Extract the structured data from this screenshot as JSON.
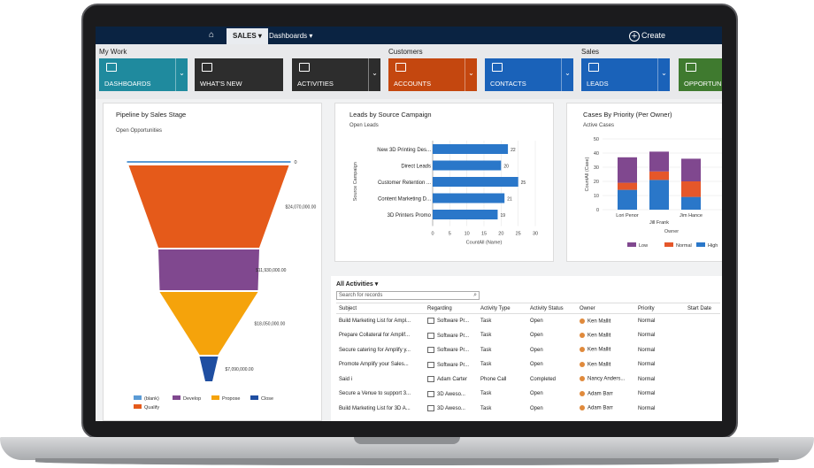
{
  "nav": {
    "sales": "SALES ▾",
    "dashboards": "Dashboards ▾",
    "create": "Create",
    "create_icon": "+"
  },
  "groups": {
    "my_work": "My Work",
    "customers": "Customers",
    "sales": "Sales"
  },
  "tiles": [
    {
      "label": "DASHBOARDS",
      "color": "#1f8a9e"
    },
    {
      "label": "WHAT'S NEW",
      "color": "#2d2d2d"
    },
    {
      "label": "ACTIVITIES",
      "color": "#2d2d2d"
    },
    {
      "label": "ACCOUNTS",
      "color": "#c4470f"
    },
    {
      "label": "CONTACTS",
      "color": "#1a62b9"
    },
    {
      "label": "LEADS",
      "color": "#1a62b9"
    },
    {
      "label": "OPPORTUNITI",
      "color": "#3f7a2f"
    }
  ],
  "pipeline": {
    "title": "Pipeline by Sales Stage",
    "subtitle": "Open Opportunities",
    "stages": [
      {
        "name": "(blank)",
        "value": 0,
        "label": "0",
        "color": "#5b9bd5"
      },
      {
        "name": "Qualify",
        "value": 24070000,
        "label": "$24,070,000.00",
        "color": "#e55a1a"
      },
      {
        "name": "Develop",
        "value": 11930000,
        "label": "$11,930,000.00",
        "color": "#80488f"
      },
      {
        "name": "Propose",
        "value": 18050000,
        "label": "$18,050,000.00",
        "color": "#f5a30b"
      },
      {
        "name": "Close",
        "value": 7090000,
        "label": "$7,090,000.00",
        "color": "#1f4ea1"
      }
    ],
    "legend": [
      "(blank)",
      "Develop",
      "Propose",
      "Close",
      "Qualify"
    ]
  },
  "chart_data": [
    {
      "type": "bar",
      "title": "Leads by Source Campaign",
      "subtitle": "Open Leads",
      "categories": [
        "New 3D Printing Des...",
        "Direct Leads",
        "Customer Retention ...",
        "Content Marketing D...",
        "3D Printers Promo"
      ],
      "values": [
        22,
        20,
        25,
        21,
        19
      ],
      "xlabel": "CountAll (Name)",
      "ylabel": "Source Campaign",
      "xlim": [
        0,
        30
      ],
      "xticks": [
        0,
        5,
        10,
        15,
        20,
        25,
        30
      ],
      "orientation": "horizontal",
      "color": "#2a77c9"
    },
    {
      "type": "bar",
      "stacked": true,
      "title": "Cases By Priority (Per Owner)",
      "subtitle": "Active Cases",
      "categories": [
        "Lori Penor",
        "Jill Frank",
        "Jim Hance"
      ],
      "series": [
        {
          "name": "High",
          "values": [
            14,
            21,
            9
          ],
          "color": "#2a77c9"
        },
        {
          "name": "Normal",
          "values": [
            5,
            6,
            11
          ],
          "color": "#e5572a"
        },
        {
          "name": "Low",
          "values": [
            18,
            14,
            16
          ],
          "color": "#80488f"
        }
      ],
      "xlabel": "Owner",
      "ylabel": "CountAll (Case)",
      "ylim": [
        0,
        50
      ],
      "yticks": [
        0,
        10,
        20,
        30,
        40,
        50
      ],
      "legend_order": [
        "Low",
        "Normal",
        "High"
      ]
    }
  ],
  "activities": {
    "title": "All Activities ▾",
    "search_placeholder": "Search for records",
    "columns": [
      "Subject",
      "Regarding",
      "Activity Type",
      "Activity Status",
      "Owner",
      "Priority",
      "Start Date"
    ],
    "rows": [
      [
        "Build Marketing List for Ampl...",
        "Software Pr...",
        "Task",
        "Open",
        "Ken Mallit",
        "Normal"
      ],
      [
        "Prepare Collateral for Amplif...",
        "Software Pr...",
        "Task",
        "Open",
        "Ken Mallit",
        "Normal"
      ],
      [
        "Secure catering for Amplify y...",
        "Software Pr...",
        "Task",
        "Open",
        "Ken Mallit",
        "Normal"
      ],
      [
        "Promote Amplify your Sales...",
        "Software Pr...",
        "Task",
        "Open",
        "Ken Mallit",
        "Normal"
      ],
      [
        "Said i",
        "Adam Carter",
        "Phone Call",
        "Completed",
        "Nancy Anders...",
        "Normal"
      ],
      [
        "Secure a Venue to support 3...",
        "3D Aweso...",
        "Task",
        "Open",
        "Adam Barr",
        "Normal"
      ],
      [
        "Build Marketing List for 3D A...",
        "3D Aweso...",
        "Task",
        "Open",
        "Adam Barr",
        "Normal"
      ]
    ]
  }
}
